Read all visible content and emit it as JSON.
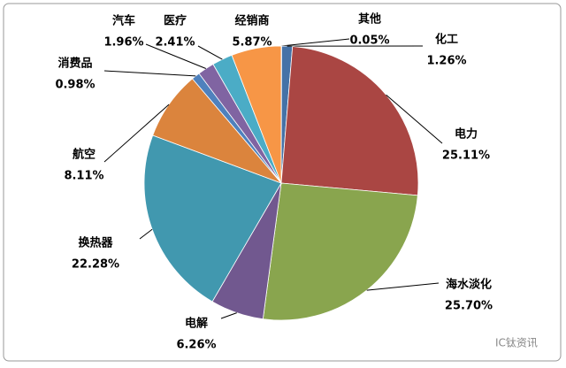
{
  "chart_data": {
    "type": "pie",
    "categories": [
      "其他",
      "化工",
      "电力",
      "海水淡化",
      "电解",
      "换热器",
      "航空",
      "消费品",
      "汽车",
      "医疗",
      "经销商"
    ],
    "values": [
      0.05,
      1.26,
      25.11,
      25.7,
      6.26,
      22.28,
      8.11,
      0.98,
      1.96,
      2.41,
      5.87
    ],
    "value_labels": [
      "0.05%",
      "1.26%",
      "25.11%",
      "25.70%",
      "6.26%",
      "22.28%",
      "8.11%",
      "0.98%",
      "1.96%",
      "2.41%",
      "5.87%"
    ],
    "colors": [
      "#4f81bd",
      "#4572a7",
      "#aa4643",
      "#89a54e",
      "#71588f",
      "#4198af",
      "#db843d",
      "#4f81bd",
      "#8064a2",
      "#4bacc6",
      "#f79646"
    ],
    "watermark": "IC钛资讯"
  }
}
